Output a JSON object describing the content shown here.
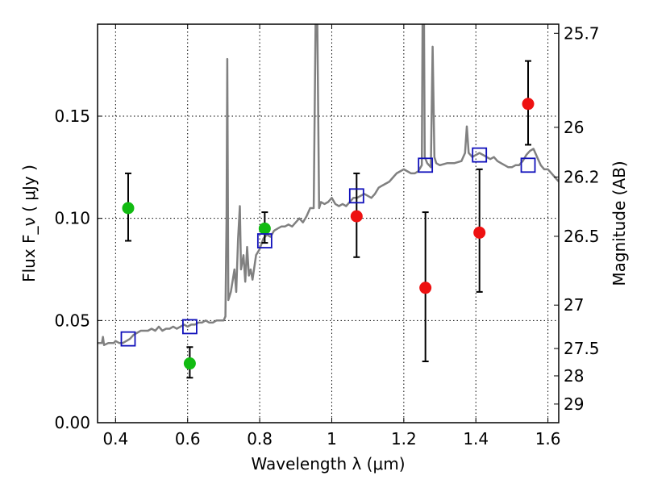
{
  "chart_data": {
    "type": "scatter",
    "xlabel": "Wavelength  λ (μm)",
    "ylabel": "Flux  F_ν  ( μJy )",
    "y2label": "Magnitude (AB)",
    "xlim": [
      0.35,
      1.63
    ],
    "ylim": [
      0.0,
      0.195
    ],
    "grid": true,
    "x_ticks": [
      {
        "value": 0.4,
        "label": "0.4"
      },
      {
        "value": 0.6,
        "label": "0.6"
      },
      {
        "value": 0.8,
        "label": "0.8"
      },
      {
        "value": 1.0,
        "label": "1"
      },
      {
        "value": 1.2,
        "label": "1.2"
      },
      {
        "value": 1.4,
        "label": "1.4"
      },
      {
        "value": 1.6,
        "label": "1.6"
      }
    ],
    "y_ticks": [
      {
        "value": 0.0,
        "label": "0.00"
      },
      {
        "value": 0.05,
        "label": "0.05"
      },
      {
        "value": 0.1,
        "label": "0.10"
      },
      {
        "value": 0.15,
        "label": "0.15"
      }
    ],
    "y2_ticks": [
      {
        "value": 25.7,
        "label": "25.7"
      },
      {
        "value": 26.0,
        "label": "26"
      },
      {
        "value": 26.2,
        "label": "26.2"
      },
      {
        "value": 26.5,
        "label": "26.5"
      },
      {
        "value": 27.0,
        "label": "27"
      },
      {
        "value": 27.5,
        "label": "27.5"
      },
      {
        "value": 28.0,
        "label": "28"
      },
      {
        "value": 29.0,
        "label": "29"
      }
    ],
    "series": [
      {
        "marker": "circle",
        "color": "#11bb11",
        "points": [
          {
            "x": 0.435,
            "y": 0.105,
            "yerr_low": 0.089,
            "yerr_high": 0.122
          },
          {
            "x": 0.606,
            "y": 0.029,
            "yerr_low": 0.022,
            "yerr_high": 0.037
          },
          {
            "x": 0.814,
            "y": 0.095,
            "yerr_low": 0.088,
            "yerr_high": 0.103
          }
        ]
      },
      {
        "marker": "circle",
        "color": "#ee1111",
        "points": [
          {
            "x": 1.069,
            "y": 0.101,
            "yerr_low": 0.081,
            "yerr_high": 0.122
          },
          {
            "x": 1.26,
            "y": 0.066,
            "yerr_low": 0.03,
            "yerr_high": 0.103
          },
          {
            "x": 1.41,
            "y": 0.093,
            "yerr_low": 0.064,
            "yerr_high": 0.124
          },
          {
            "x": 1.545,
            "y": 0.156,
            "yerr_low": 0.136,
            "yerr_high": 0.177
          }
        ]
      },
      {
        "marker": "open-square",
        "color": "#1111bb",
        "points": [
          {
            "x": 0.435,
            "y": 0.041
          },
          {
            "x": 0.606,
            "y": 0.047
          },
          {
            "x": 0.814,
            "y": 0.089
          },
          {
            "x": 1.069,
            "y": 0.111
          },
          {
            "x": 1.26,
            "y": 0.126
          },
          {
            "x": 1.41,
            "y": 0.131
          },
          {
            "x": 1.545,
            "y": 0.126
          }
        ]
      }
    ],
    "model_spectrum": {
      "color": "#808080",
      "points": [
        [
          0.35,
          0.039
        ],
        [
          0.362,
          0.039
        ],
        [
          0.365,
          0.042
        ],
        [
          0.368,
          0.038
        ],
        [
          0.38,
          0.039
        ],
        [
          0.395,
          0.039
        ],
        [
          0.4,
          0.04
        ],
        [
          0.41,
          0.039
        ],
        [
          0.42,
          0.039
        ],
        [
          0.43,
          0.04
        ],
        [
          0.44,
          0.041
        ],
        [
          0.45,
          0.043
        ],
        [
          0.46,
          0.044
        ],
        [
          0.47,
          0.045
        ],
        [
          0.48,
          0.045
        ],
        [
          0.49,
          0.045
        ],
        [
          0.5,
          0.046
        ],
        [
          0.51,
          0.045
        ],
        [
          0.52,
          0.047
        ],
        [
          0.53,
          0.045
        ],
        [
          0.54,
          0.046
        ],
        [
          0.55,
          0.046
        ],
        [
          0.56,
          0.047
        ],
        [
          0.57,
          0.046
        ],
        [
          0.58,
          0.047
        ],
        [
          0.59,
          0.048
        ],
        [
          0.6,
          0.047
        ],
        [
          0.61,
          0.048
        ],
        [
          0.62,
          0.048
        ],
        [
          0.63,
          0.049
        ],
        [
          0.64,
          0.049
        ],
        [
          0.65,
          0.05
        ],
        [
          0.66,
          0.049
        ],
        [
          0.67,
          0.049
        ],
        [
          0.68,
          0.05
        ],
        [
          0.69,
          0.05
        ],
        [
          0.7,
          0.05
        ],
        [
          0.705,
          0.052
        ],
        [
          0.708,
          0.1
        ],
        [
          0.71,
          0.178
        ],
        [
          0.713,
          0.06
        ],
        [
          0.72,
          0.064
        ],
        [
          0.73,
          0.075
        ],
        [
          0.735,
          0.064
        ],
        [
          0.74,
          0.09
        ],
        [
          0.745,
          0.106
        ],
        [
          0.748,
          0.075
        ],
        [
          0.755,
          0.082
        ],
        [
          0.76,
          0.069
        ],
        [
          0.765,
          0.086
        ],
        [
          0.77,
          0.072
        ],
        [
          0.775,
          0.075
        ],
        [
          0.78,
          0.07
        ],
        [
          0.79,
          0.082
        ],
        [
          0.8,
          0.085
        ],
        [
          0.81,
          0.09
        ],
        [
          0.82,
          0.092
        ],
        [
          0.83,
          0.091
        ],
        [
          0.84,
          0.094
        ],
        [
          0.85,
          0.095
        ],
        [
          0.86,
          0.096
        ],
        [
          0.87,
          0.096
        ],
        [
          0.88,
          0.097
        ],
        [
          0.89,
          0.096
        ],
        [
          0.9,
          0.098
        ],
        [
          0.91,
          0.1
        ],
        [
          0.92,
          0.098
        ],
        [
          0.93,
          0.101
        ],
        [
          0.94,
          0.105
        ],
        [
          0.95,
          0.105
        ],
        [
          0.955,
          0.195
        ],
        [
          0.96,
          0.195
        ],
        [
          0.965,
          0.105
        ],
        [
          0.97,
          0.108
        ],
        [
          0.98,
          0.107
        ],
        [
          0.99,
          0.108
        ],
        [
          1.0,
          0.11
        ],
        [
          1.01,
          0.107
        ],
        [
          1.02,
          0.106
        ],
        [
          1.03,
          0.107
        ],
        [
          1.04,
          0.106
        ],
        [
          1.05,
          0.108
        ],
        [
          1.06,
          0.11
        ],
        [
          1.07,
          0.11
        ],
        [
          1.08,
          0.111
        ],
        [
          1.09,
          0.112
        ],
        [
          1.1,
          0.111
        ],
        [
          1.11,
          0.11
        ],
        [
          1.12,
          0.112
        ],
        [
          1.13,
          0.115
        ],
        [
          1.14,
          0.116
        ],
        [
          1.15,
          0.117
        ],
        [
          1.16,
          0.118
        ],
        [
          1.17,
          0.12
        ],
        [
          1.18,
          0.122
        ],
        [
          1.19,
          0.123
        ],
        [
          1.2,
          0.124
        ],
        [
          1.21,
          0.123
        ],
        [
          1.22,
          0.122
        ],
        [
          1.23,
          0.122
        ],
        [
          1.24,
          0.123
        ],
        [
          1.25,
          0.126
        ],
        [
          1.252,
          0.195
        ],
        [
          1.256,
          0.195
        ],
        [
          1.258,
          0.13
        ],
        [
          1.265,
          0.127
        ],
        [
          1.275,
          0.125
        ],
        [
          1.28,
          0.184
        ],
        [
          1.285,
          0.13
        ],
        [
          1.29,
          0.127
        ],
        [
          1.3,
          0.126
        ],
        [
          1.32,
          0.127
        ],
        [
          1.34,
          0.127
        ],
        [
          1.36,
          0.128
        ],
        [
          1.37,
          0.132
        ],
        [
          1.375,
          0.145
        ],
        [
          1.38,
          0.132
        ],
        [
          1.39,
          0.13
        ],
        [
          1.4,
          0.131
        ],
        [
          1.41,
          0.132
        ],
        [
          1.42,
          0.131
        ],
        [
          1.43,
          0.13
        ],
        [
          1.44,
          0.129
        ],
        [
          1.45,
          0.13
        ],
        [
          1.46,
          0.128
        ],
        [
          1.47,
          0.127
        ],
        [
          1.48,
          0.126
        ],
        [
          1.49,
          0.125
        ],
        [
          1.5,
          0.125
        ],
        [
          1.51,
          0.126
        ],
        [
          1.52,
          0.126
        ],
        [
          1.53,
          0.128
        ],
        [
          1.54,
          0.131
        ],
        [
          1.55,
          0.133
        ],
        [
          1.56,
          0.134
        ],
        [
          1.57,
          0.13
        ],
        [
          1.58,
          0.126
        ],
        [
          1.59,
          0.124
        ],
        [
          1.6,
          0.124
        ],
        [
          1.61,
          0.122
        ],
        [
          1.62,
          0.12
        ],
        [
          1.63,
          0.118
        ]
      ]
    }
  }
}
